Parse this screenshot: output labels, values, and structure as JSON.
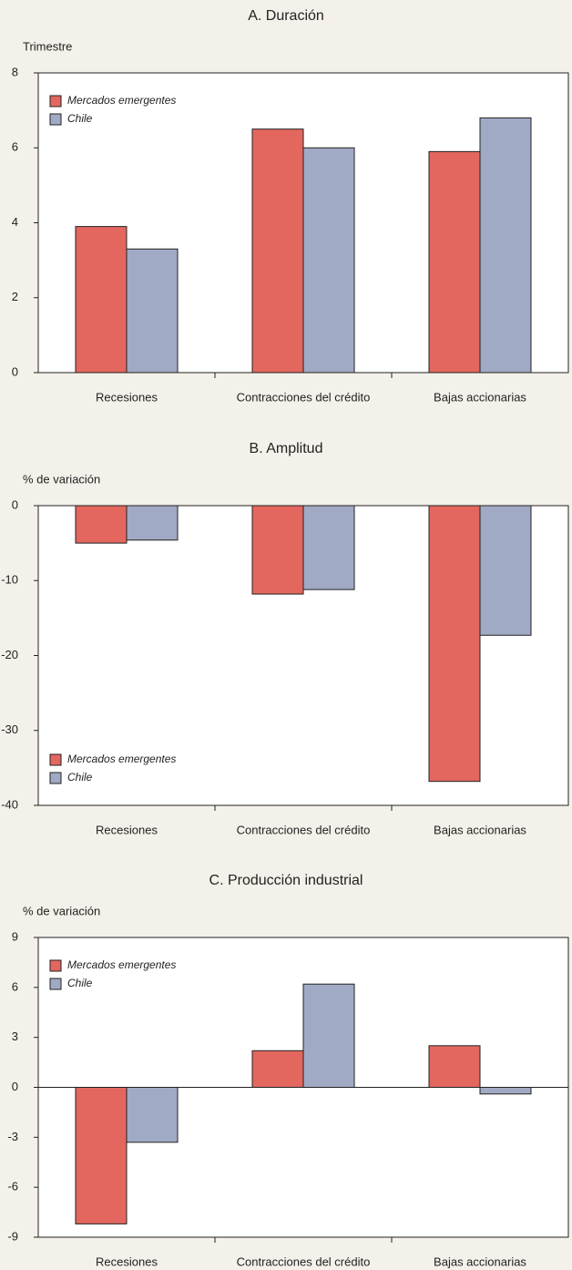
{
  "chart_data": [
    {
      "type": "bar",
      "title": "A. Duración",
      "ylabel": "Trimestre",
      "categories": [
        "Recesiones",
        "Contracciones del crédito",
        "Bajas accionarias"
      ],
      "series": [
        {
          "name": "Mercados emergentes",
          "color": "#e3675f",
          "values": [
            3.9,
            6.5,
            5.9
          ]
        },
        {
          "name": "Chile",
          "color": "#a1aac4",
          "values": [
            3.3,
            6.0,
            6.8
          ]
        }
      ],
      "ylim": [
        0,
        8
      ],
      "yticks": [
        0,
        2,
        4,
        6,
        8
      ],
      "legend": "upper left"
    },
    {
      "type": "bar",
      "title": "B. Amplitud",
      "ylabel": "% de variación",
      "categories": [
        "Recesiones",
        "Contracciones del crédito",
        "Bajas accionarias"
      ],
      "series": [
        {
          "name": "Mercados emergentes",
          "color": "#e3675f",
          "values": [
            -5.0,
            -11.8,
            -36.8
          ]
        },
        {
          "name": "Chile",
          "color": "#a1aac4",
          "values": [
            -4.6,
            -11.2,
            -17.3
          ]
        }
      ],
      "ylim": [
        -40,
        0
      ],
      "yticks": [
        0,
        -10,
        -20,
        -30,
        -40
      ],
      "legend": "lower left"
    },
    {
      "type": "bar",
      "title": "C. Producción industrial",
      "ylabel": "% de variación",
      "categories": [
        "Recesiones",
        "Contracciones del crédito",
        "Bajas accionarias"
      ],
      "series": [
        {
          "name": "Mercados emergentes",
          "color": "#e3675f",
          "values": [
            -8.2,
            2.2,
            2.5
          ]
        },
        {
          "name": "Chile",
          "color": "#a1aac4",
          "values": [
            -3.3,
            6.2,
            -0.4
          ]
        }
      ],
      "ylim": [
        -9,
        9
      ],
      "yticks": [
        9,
        6,
        3,
        0,
        -3,
        -6,
        -9
      ],
      "legend": "upper left"
    }
  ]
}
